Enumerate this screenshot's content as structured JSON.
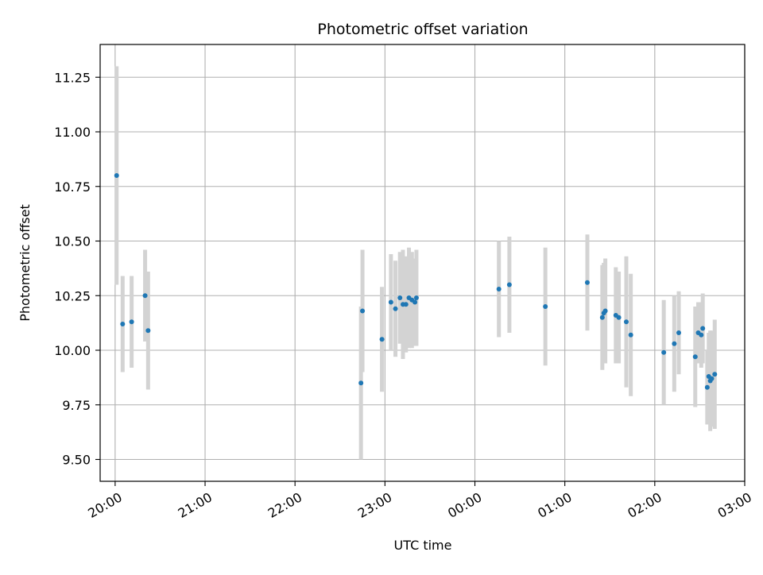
{
  "chart_data": {
    "type": "scatter",
    "title": "Photometric offset variation",
    "xlabel": "UTC time",
    "ylabel": "Photometric offset",
    "x_axis": "time",
    "xlim": [
      "19:50",
      "03:00"
    ],
    "ylim": [
      9.4,
      11.4
    ],
    "x_ticks": [
      "20:00",
      "21:00",
      "22:00",
      "23:00",
      "00:00",
      "01:00",
      "02:00",
      "03:00"
    ],
    "y_ticks": [
      "9.50",
      "9.75",
      "10.00",
      "10.25",
      "10.50",
      "10.75",
      "11.00",
      "11.25"
    ],
    "grid": true,
    "point_color": "#1f77b4",
    "errorbar_color": "#d3d3d3",
    "points": [
      {
        "t": "20:01",
        "y": 10.8,
        "err": 0.5
      },
      {
        "t": "20:05",
        "y": 10.12,
        "err": 0.22
      },
      {
        "t": "20:11",
        "y": 10.13,
        "err": 0.21
      },
      {
        "t": "20:20",
        "y": 10.25,
        "err": 0.21
      },
      {
        "t": "20:22",
        "y": 10.09,
        "err": 0.27
      },
      {
        "t": "22:44",
        "y": 9.85,
        "err": 0.35
      },
      {
        "t": "22:45",
        "y": 10.18,
        "err": 0.28
      },
      {
        "t": "22:58",
        "y": 10.05,
        "err": 0.24
      },
      {
        "t": "23:04",
        "y": 10.22,
        "err": 0.22
      },
      {
        "t": "23:07",
        "y": 10.19,
        "err": 0.22
      },
      {
        "t": "23:10",
        "y": 10.24,
        "err": 0.21
      },
      {
        "t": "23:12",
        "y": 10.21,
        "err": 0.25
      },
      {
        "t": "23:14",
        "y": 10.21,
        "err": 0.22
      },
      {
        "t": "23:16",
        "y": 10.24,
        "err": 0.23
      },
      {
        "t": "23:18",
        "y": 10.23,
        "err": 0.22
      },
      {
        "t": "23:20",
        "y": 10.22,
        "err": 0.2
      },
      {
        "t": "23:21",
        "y": 10.24,
        "err": 0.22
      },
      {
        "t": "00:16",
        "y": 10.28,
        "err": 0.22
      },
      {
        "t": "00:23",
        "y": 10.3,
        "err": 0.22
      },
      {
        "t": "00:47",
        "y": 10.2,
        "err": 0.27
      },
      {
        "t": "01:15",
        "y": 10.31,
        "err": 0.22
      },
      {
        "t": "01:25",
        "y": 10.15,
        "err": 0.24
      },
      {
        "t": "01:26",
        "y": 10.17,
        "err": 0.23
      },
      {
        "t": "01:27",
        "y": 10.18,
        "err": 0.24
      },
      {
        "t": "01:34",
        "y": 10.16,
        "err": 0.22
      },
      {
        "t": "01:36",
        "y": 10.15,
        "err": 0.21
      },
      {
        "t": "01:41",
        "y": 10.13,
        "err": 0.3
      },
      {
        "t": "01:44",
        "y": 10.07,
        "err": 0.28
      },
      {
        "t": "02:06",
        "y": 9.99,
        "err": 0.24
      },
      {
        "t": "02:13",
        "y": 10.03,
        "err": 0.22
      },
      {
        "t": "02:16",
        "y": 10.08,
        "err": 0.19
      },
      {
        "t": "02:27",
        "y": 9.97,
        "err": 0.23
      },
      {
        "t": "02:29",
        "y": 10.08,
        "err": 0.14
      },
      {
        "t": "02:31",
        "y": 10.07,
        "err": 0.15
      },
      {
        "t": "02:32",
        "y": 10.1,
        "err": 0.16
      },
      {
        "t": "02:35",
        "y": 9.83,
        "err": 0.17
      },
      {
        "t": "02:36",
        "y": 9.88,
        "err": 0.2
      },
      {
        "t": "02:37",
        "y": 9.86,
        "err": 0.23
      },
      {
        "t": "02:38",
        "y": 9.87,
        "err": 0.22
      },
      {
        "t": "02:40",
        "y": 9.89,
        "err": 0.25
      }
    ]
  }
}
